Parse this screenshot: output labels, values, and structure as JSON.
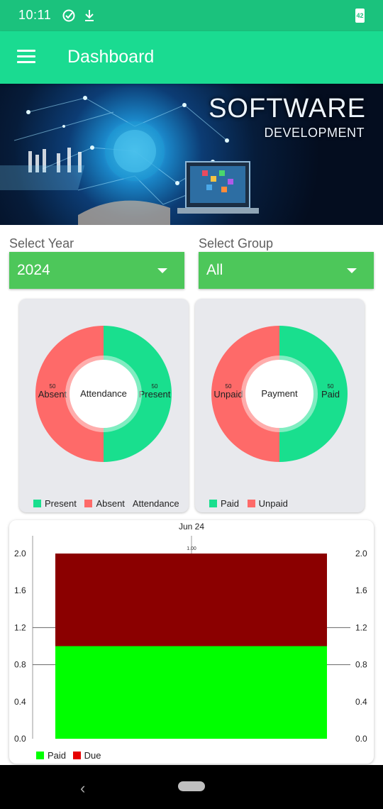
{
  "status_bar": {
    "time": "10:11",
    "battery_level": "42",
    "icons": [
      "check-circle-icon",
      "download-icon",
      "battery-icon"
    ]
  },
  "app_bar": {
    "title": "Dashboard",
    "menu_icon": "hamburger-menu-icon"
  },
  "banner": {
    "title": "SOFTWARE",
    "subtitle": "DEVELOPMENT"
  },
  "filters": {
    "year": {
      "label": "Select Year",
      "value": "2024"
    },
    "group": {
      "label": "Select Group",
      "value": "All"
    }
  },
  "colors": {
    "green": "#19df8e",
    "red": "#fe6a69",
    "dark_red": "#8b0000",
    "bright_green": "#00ff00",
    "select_bg": "#4dc75a"
  },
  "chart_data": [
    {
      "type": "pie",
      "center_text": "Attendance",
      "categories": [
        "Present",
        "Absent"
      ],
      "values": [
        50,
        50
      ],
      "value_labels": [
        "50",
        "50"
      ],
      "legend": [
        "Present",
        "Absent"
      ],
      "legend_title": "Attendance"
    },
    {
      "type": "pie",
      "center_text": "Payment",
      "categories": [
        "Paid",
        "Unpaid"
      ],
      "values": [
        50,
        50
      ],
      "value_labels": [
        "50",
        "50"
      ],
      "legend": [
        "Paid",
        "Unpaid"
      ]
    },
    {
      "type": "bar",
      "stacked": true,
      "title": "Jun 24",
      "categories": [
        "Jun 24"
      ],
      "series": [
        {
          "name": "Paid",
          "values": [
            1.0
          ],
          "label": "1.00"
        },
        {
          "name": "Due",
          "values": [
            1.0
          ],
          "label": "1.00"
        }
      ],
      "ylim": [
        0,
        2.0
      ],
      "yticks": [
        "0.0",
        "0.4",
        "0.8",
        "1.2",
        "1.6",
        "2.0"
      ],
      "legend": [
        "Paid",
        "Due"
      ]
    }
  ]
}
